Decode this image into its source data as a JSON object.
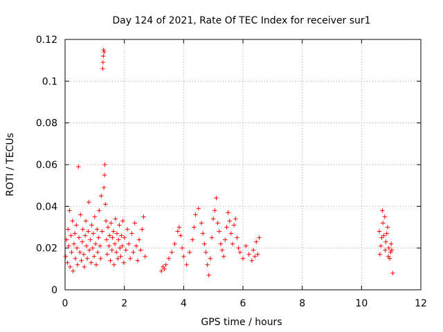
{
  "chart_data": {
    "type": "scatter",
    "title": "Day 124 of 2021, Rate Of TEC Index for receiver sur1",
    "xlabel": "GPS time / hours",
    "ylabel": "ROTI / TECUs",
    "xlim": [
      0,
      12
    ],
    "ylim": [
      0,
      0.12
    ],
    "x_ticks": [
      0,
      2,
      4,
      6,
      8,
      10,
      12
    ],
    "x_tick_labels": [
      "0",
      "2",
      "4",
      "6",
      "8",
      "10",
      "12"
    ],
    "y_ticks": [
      0,
      0.02,
      0.04,
      0.06,
      0.08,
      0.1,
      0.12
    ],
    "y_tick_labels": [
      "0",
      "0.02",
      "0.04",
      "0.06",
      "0.08",
      "0.1",
      "0.12"
    ],
    "grid": true,
    "marker": "+",
    "color": "#ff0000",
    "series": [
      {
        "name": "ROTI",
        "points": [
          [
            0.02,
            0.016
          ],
          [
            0.05,
            0.024
          ],
          [
            0.08,
            0.013
          ],
          [
            0.1,
            0.029
          ],
          [
            0.12,
            0.021
          ],
          [
            0.15,
            0.038
          ],
          [
            0.17,
            0.011
          ],
          [
            0.2,
            0.026
          ],
          [
            0.22,
            0.018
          ],
          [
            0.25,
            0.033
          ],
          [
            0.27,
            0.009
          ],
          [
            0.3,
            0.022
          ],
          [
            0.33,
            0.027
          ],
          [
            0.35,
            0.015
          ],
          [
            0.38,
            0.031
          ],
          [
            0.4,
            0.02
          ],
          [
            0.42,
            0.012
          ],
          [
            0.45,
            0.059
          ],
          [
            0.47,
            0.025
          ],
          [
            0.5,
            0.018
          ],
          [
            0.52,
            0.036
          ],
          [
            0.55,
            0.014
          ],
          [
            0.58,
            0.023
          ],
          [
            0.6,
            0.029
          ],
          [
            0.63,
            0.017
          ],
          [
            0.65,
            0.011
          ],
          [
            0.68,
            0.026
          ],
          [
            0.7,
            0.033
          ],
          [
            0.72,
            0.021
          ],
          [
            0.75,
            0.015
          ],
          [
            0.78,
            0.028
          ],
          [
            0.8,
            0.042
          ],
          [
            0.82,
            0.019
          ],
          [
            0.85,
            0.024
          ],
          [
            0.88,
            0.013
          ],
          [
            0.9,
            0.031
          ],
          [
            0.93,
            0.02
          ],
          [
            0.95,
            0.027
          ],
          [
            0.98,
            0.016
          ],
          [
            1.0,
            0.035
          ],
          [
            1.03,
            0.022
          ],
          [
            1.05,
            0.012
          ],
          [
            1.08,
            0.029
          ],
          [
            1.1,
            0.018
          ],
          [
            1.13,
            0.025
          ],
          [
            1.15,
            0.038
          ],
          [
            1.18,
            0.021
          ],
          [
            1.2,
            0.015
          ],
          [
            1.22,
            0.045
          ],
          [
            1.25,
            0.028
          ],
          [
            1.27,
            0.106
          ],
          [
            1.28,
            0.109
          ],
          [
            1.29,
            0.112
          ],
          [
            1.3,
            0.115
          ],
          [
            1.32,
            0.114
          ],
          [
            1.31,
            0.049
          ],
          [
            1.33,
            0.055
          ],
          [
            1.34,
            0.06
          ],
          [
            1.36,
            0.041
          ],
          [
            1.38,
            0.033
          ],
          [
            1.4,
            0.024
          ],
          [
            1.42,
            0.017
          ],
          [
            1.45,
            0.03
          ],
          [
            1.48,
            0.021
          ],
          [
            1.5,
            0.026
          ],
          [
            1.53,
            0.014
          ],
          [
            1.55,
            0.032
          ],
          [
            1.58,
            0.019
          ],
          [
            1.6,
            0.025
          ],
          [
            1.63,
            0.028
          ],
          [
            1.65,
            0.012
          ],
          [
            1.68,
            0.022
          ],
          [
            1.7,
            0.034
          ],
          [
            1.73,
            0.018
          ],
          [
            1.75,
            0.027
          ],
          [
            1.78,
            0.015
          ],
          [
            1.8,
            0.024
          ],
          [
            1.83,
            0.031
          ],
          [
            1.85,
            0.02
          ],
          [
            1.88,
            0.016
          ],
          [
            1.9,
            0.026
          ],
          [
            1.93,
            0.021
          ],
          [
            1.95,
            0.033
          ],
          [
            1.98,
            0.013
          ],
          [
            2.0,
            0.025
          ],
          [
            2.05,
            0.019
          ],
          [
            2.1,
            0.029
          ],
          [
            2.15,
            0.022
          ],
          [
            2.2,
            0.015
          ],
          [
            2.25,
            0.027
          ],
          [
            2.3,
            0.018
          ],
          [
            2.35,
            0.032
          ],
          [
            2.4,
            0.021
          ],
          [
            2.45,
            0.014
          ],
          [
            2.5,
            0.024
          ],
          [
            2.55,
            0.019
          ],
          [
            2.6,
            0.029
          ],
          [
            2.65,
            0.035
          ],
          [
            2.7,
            0.016
          ],
          [
            3.25,
            0.009
          ],
          [
            3.3,
            0.011
          ],
          [
            3.35,
            0.01
          ],
          [
            3.4,
            0.012
          ],
          [
            3.5,
            0.015
          ],
          [
            3.6,
            0.018
          ],
          [
            3.7,
            0.022
          ],
          [
            3.8,
            0.028
          ],
          [
            3.85,
            0.03
          ],
          [
            3.9,
            0.026
          ],
          [
            3.95,
            0.02
          ],
          [
            4.0,
            0.016
          ],
          [
            4.1,
            0.012
          ],
          [
            4.2,
            0.018
          ],
          [
            4.3,
            0.024
          ],
          [
            4.35,
            0.03
          ],
          [
            4.4,
            0.036
          ],
          [
            4.5,
            0.039
          ],
          [
            4.6,
            0.032
          ],
          [
            4.65,
            0.027
          ],
          [
            4.7,
            0.022
          ],
          [
            4.75,
            0.018
          ],
          [
            4.8,
            0.012
          ],
          [
            4.85,
            0.007
          ],
          [
            4.9,
            0.015
          ],
          [
            4.95,
            0.025
          ],
          [
            5.0,
            0.034
          ],
          [
            5.05,
            0.038
          ],
          [
            5.1,
            0.044
          ],
          [
            5.15,
            0.032
          ],
          [
            5.2,
            0.028
          ],
          [
            5.25,
            0.022
          ],
          [
            5.3,
            0.019
          ],
          [
            5.35,
            0.016
          ],
          [
            5.4,
            0.024
          ],
          [
            5.45,
            0.03
          ],
          [
            5.5,
            0.037
          ],
          [
            5.55,
            0.033
          ],
          [
            5.6,
            0.027
          ],
          [
            5.65,
            0.022
          ],
          [
            5.7,
            0.031
          ],
          [
            5.75,
            0.034
          ],
          [
            5.8,
            0.025
          ],
          [
            5.85,
            0.02
          ],
          [
            5.9,
            0.018
          ],
          [
            6.0,
            0.015
          ],
          [
            6.1,
            0.021
          ],
          [
            6.2,
            0.017
          ],
          [
            6.3,
            0.014
          ],
          [
            6.35,
            0.019
          ],
          [
            6.4,
            0.016
          ],
          [
            6.45,
            0.023
          ],
          [
            6.5,
            0.017
          ],
          [
            6.55,
            0.025
          ],
          [
            10.6,
            0.028
          ],
          [
            10.62,
            0.017
          ],
          [
            10.65,
            0.021
          ],
          [
            10.68,
            0.025
          ],
          [
            10.7,
            0.038
          ],
          [
            10.72,
            0.032
          ],
          [
            10.75,
            0.026
          ],
          [
            10.78,
            0.035
          ],
          [
            10.8,
            0.019
          ],
          [
            10.82,
            0.023
          ],
          [
            10.85,
            0.027
          ],
          [
            10.88,
            0.03
          ],
          [
            10.9,
            0.016
          ],
          [
            10.92,
            0.02
          ],
          [
            10.95,
            0.015
          ],
          [
            10.98,
            0.018
          ],
          [
            11.0,
            0.022
          ],
          [
            11.02,
            0.019
          ],
          [
            11.05,
            0.008
          ]
        ]
      }
    ]
  }
}
